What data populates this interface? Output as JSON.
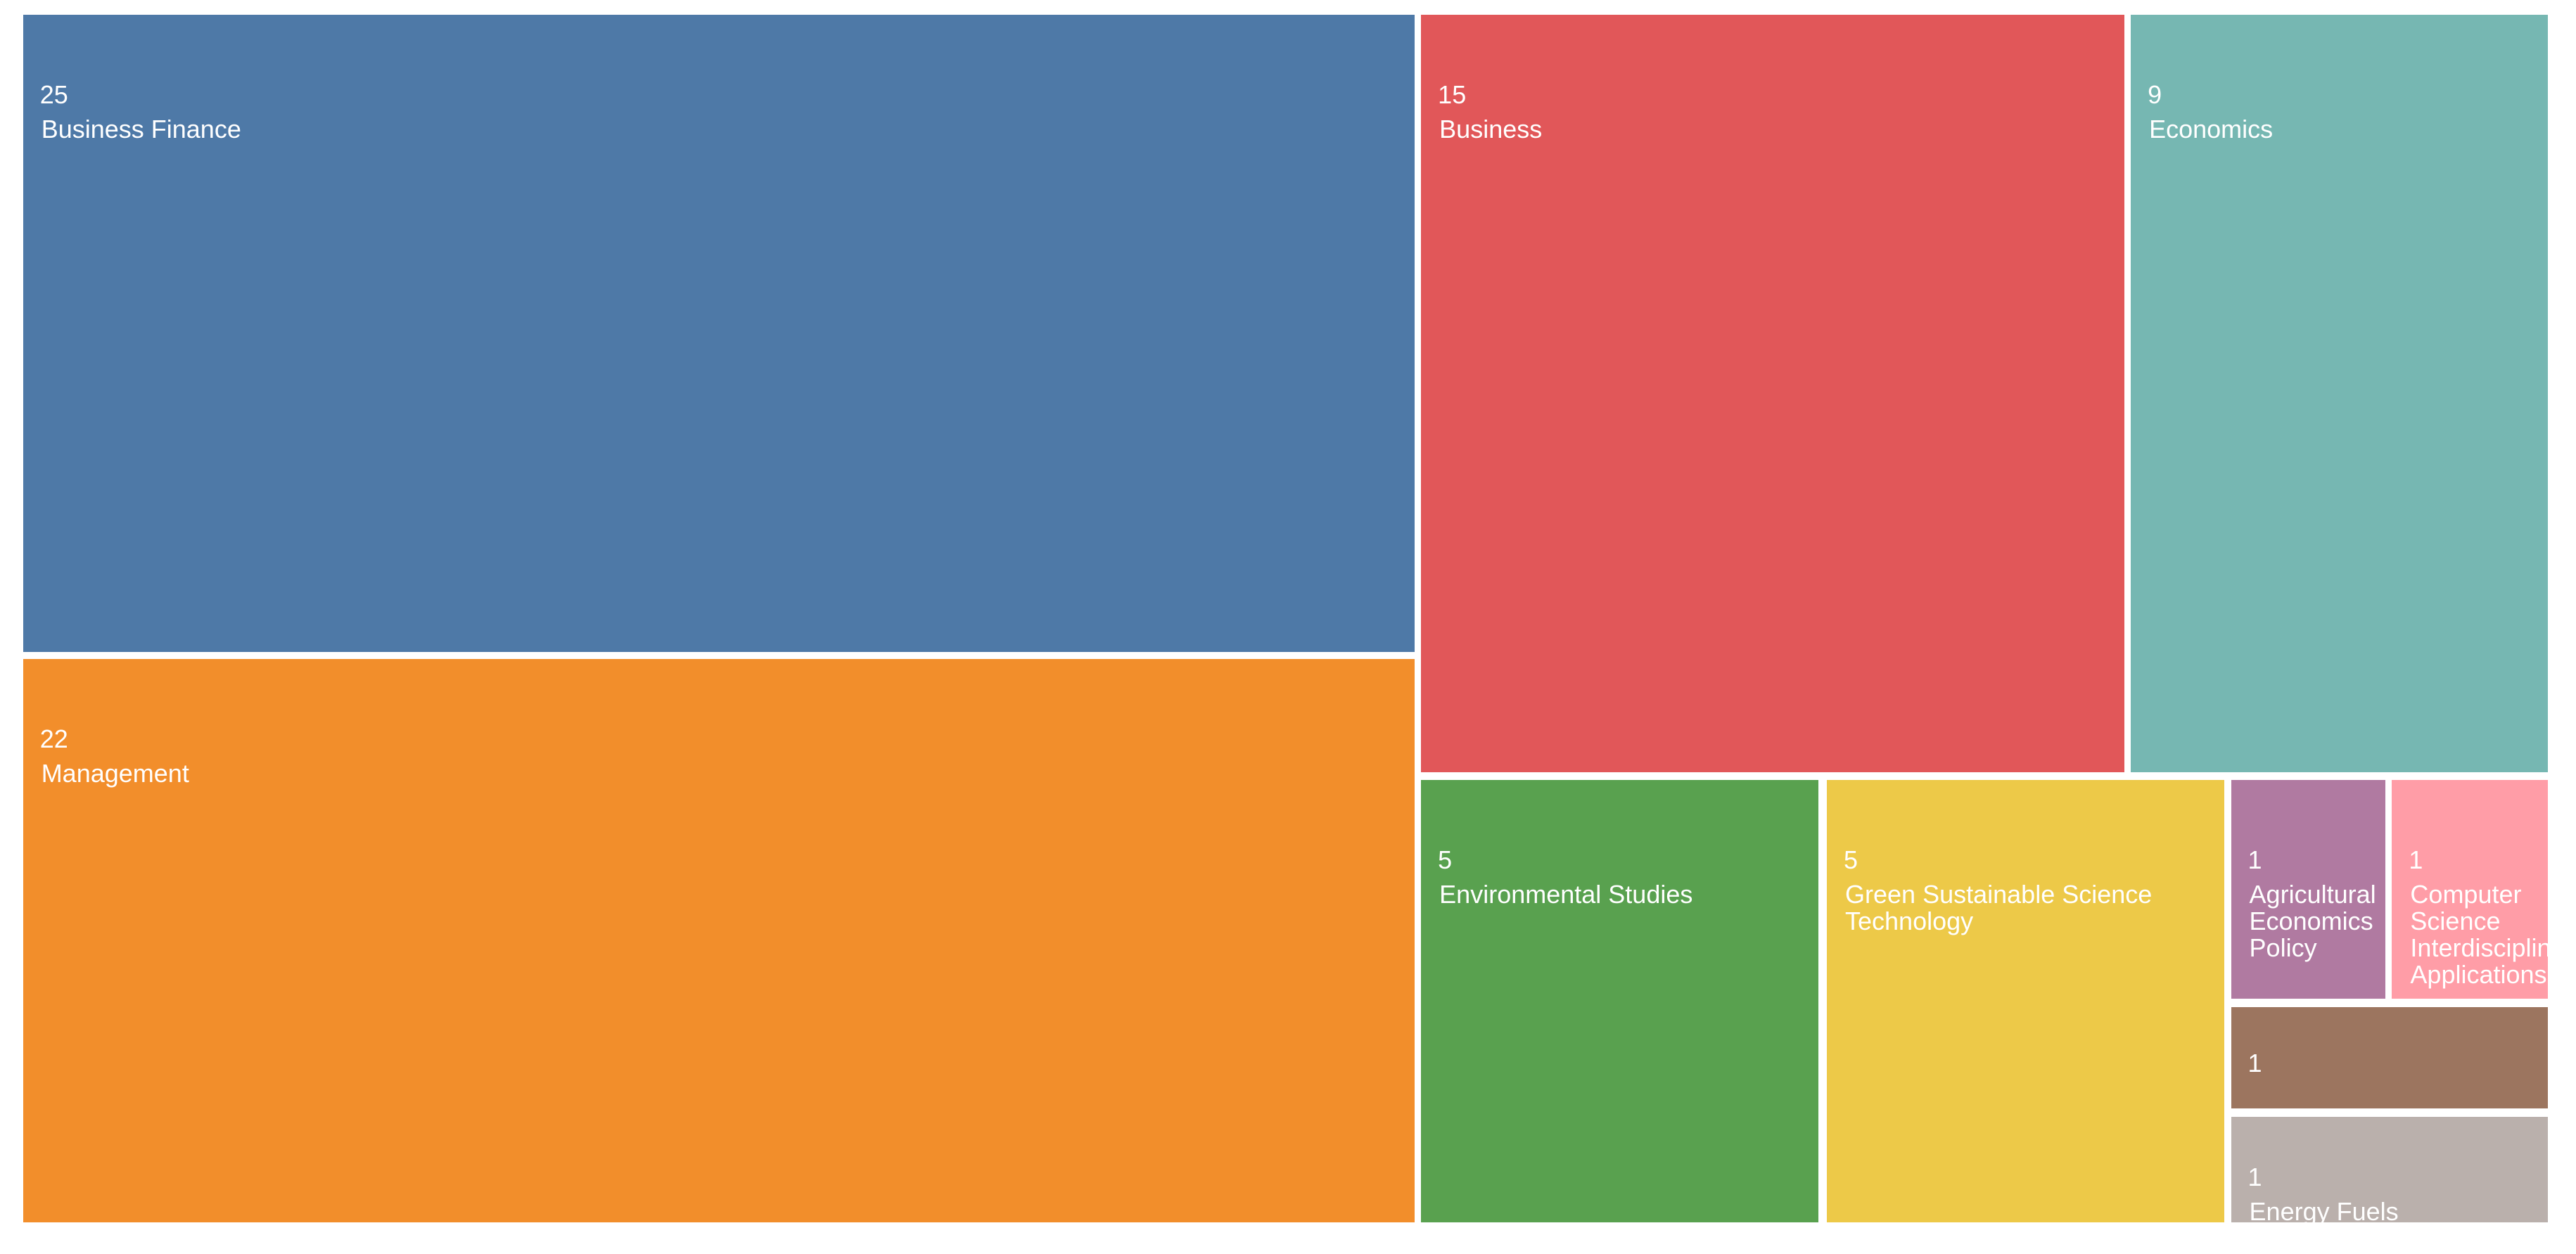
{
  "chart_data": {
    "type": "treemap",
    "categories": [
      "Business Finance",
      "Management",
      "Business",
      "Economics",
      "Environmental Studies",
      "Green Sustainable Science Technology",
      "Agricultural Economics Policy",
      "Computer Science Interdisciplinary Applications",
      null,
      "Energy Fuels"
    ],
    "values": [
      25,
      22,
      15,
      9,
      5,
      5,
      1,
      1,
      1,
      1
    ],
    "colors": [
      "#4e79a7",
      "#f28e2b",
      "#e15759",
      "#76b7b2",
      "#59a14f",
      "#edc948",
      "#b07aa1",
      "#ff9da7",
      "#9c755f",
      "#bab0ac"
    ]
  }
}
